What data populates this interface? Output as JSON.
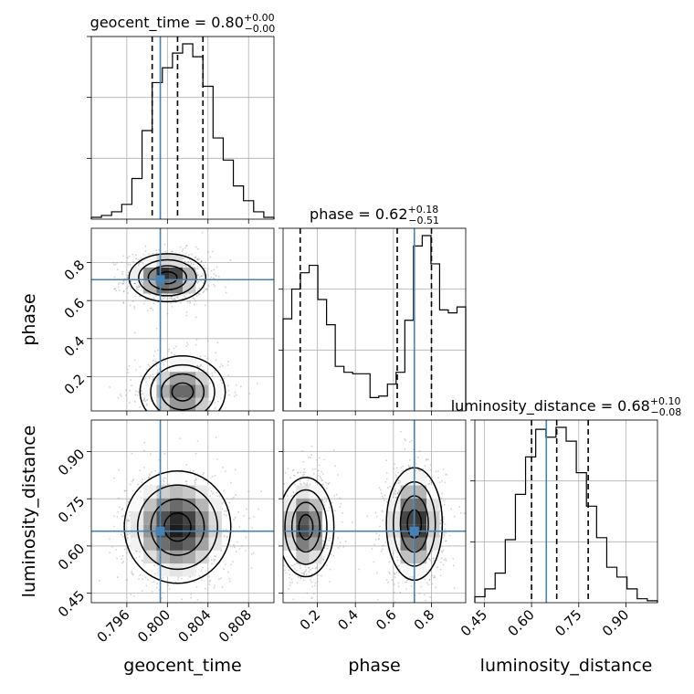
{
  "chart_data": {
    "type": "corner",
    "parameters": [
      "geocent_time",
      "phase",
      "luminosity_distance"
    ],
    "axis_labels": {
      "geocent_time": "geocent_time",
      "phase": "phase",
      "luminosity_distance": "luminosity_distance"
    },
    "ranges": {
      "geocent_time": [
        0.7925,
        0.8105
      ],
      "phase": [
        0.02,
        0.98
      ],
      "luminosity_distance": [
        0.42,
        1.0
      ]
    },
    "ticks": {
      "geocent_time": [
        0.796,
        0.8,
        0.804,
        0.808
      ],
      "phase": [
        0.2,
        0.4,
        0.6,
        0.8
      ],
      "luminosity_distance": [
        0.45,
        0.6,
        0.75,
        0.9
      ]
    },
    "tick_labels": {
      "geocent_time": [
        "0.796",
        "0.800",
        "0.804",
        "0.808"
      ],
      "phase": [
        "0.2",
        "0.4",
        "0.6",
        "0.8"
      ],
      "luminosity_distance": [
        "0.45",
        "0.60",
        "0.75",
        "0.90"
      ]
    },
    "truths": {
      "geocent_time": 0.7993,
      "phase": 0.71,
      "luminosity_distance": 0.647
    },
    "titles": [
      {
        "param": "geocent_time",
        "text": "geocent_time = 0.80",
        "sup": "+0.00",
        "sub": "−0.00"
      },
      {
        "param": "phase",
        "text": "phase = 0.62",
        "sup": "+0.18",
        "sub": "−0.51"
      },
      {
        "param": "luminosity_distance",
        "text": "luminosity_distance = 0.68",
        "sup": "+0.10",
        "sub": "−0.08"
      }
    ],
    "quantiles": {
      "geocent_time": [
        0.7985,
        0.801,
        0.8035
      ],
      "phase": [
        0.11,
        0.62,
        0.8
      ],
      "luminosity_distance": [
        0.6,
        0.68,
        0.78
      ]
    },
    "histograms": {
      "geocent_time": {
        "range": [
          0.7925,
          0.8105
        ],
        "counts": [
          1,
          2,
          4,
          8,
          22,
          48,
          74,
          82,
          90,
          95,
          88,
          72,
          44,
          32,
          18,
          10,
          4,
          1
        ]
      },
      "phase": {
        "range": [
          0.02,
          0.98
        ],
        "counts": [
          62,
          82,
          93,
          98,
          75,
          58,
          30,
          26,
          25,
          25,
          9,
          10,
          18,
          26,
          61,
          111,
          118,
          99,
          68,
          66,
          70
        ]
      },
      "luminosity_distance": {
        "range": [
          0.42,
          1.0
        ],
        "counts": [
          3,
          7,
          15,
          32,
          55,
          74,
          88,
          84,
          89,
          82,
          66,
          49,
          33,
          18,
          13,
          7,
          2,
          1
        ]
      }
    },
    "joint": [
      {
        "x": "geocent_time",
        "y": "phase",
        "modes": [
          {
            "cx": 0.8,
            "cy": 0.72,
            "sx": 0.0018,
            "sy": 0.06,
            "peak": 1.0
          },
          {
            "cx": 0.8015,
            "cy": 0.12,
            "sx": 0.002,
            "sy": 0.09,
            "peak": 0.75
          }
        ]
      },
      {
        "x": "geocent_time",
        "y": "luminosity_distance",
        "modes": [
          {
            "cx": 0.801,
            "cy": 0.66,
            "sx": 0.0025,
            "sy": 0.085,
            "peak": 1.0
          }
        ]
      },
      {
        "x": "phase",
        "y": "luminosity_distance",
        "modes": [
          {
            "cx": 0.14,
            "cy": 0.66,
            "sx": 0.07,
            "sy": 0.075,
            "peak": 0.85
          },
          {
            "cx": 0.71,
            "cy": 0.67,
            "sx": 0.07,
            "sy": 0.085,
            "peak": 1.0
          }
        ]
      }
    ],
    "grid": true
  }
}
